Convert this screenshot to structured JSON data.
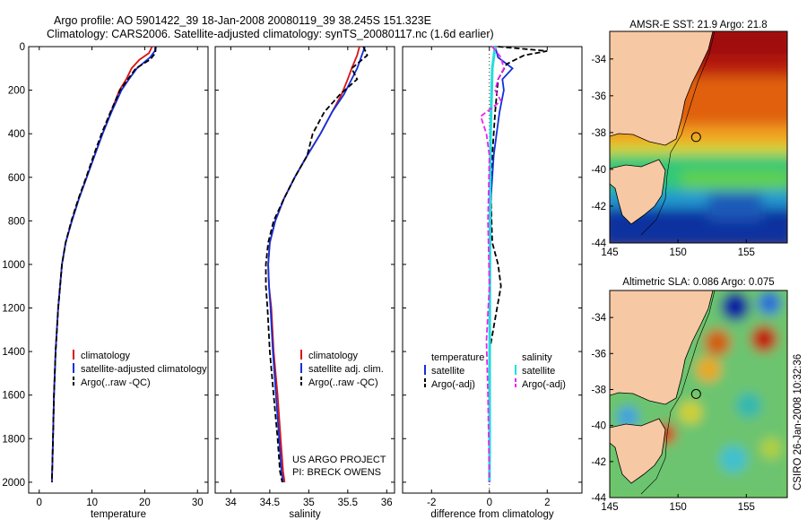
{
  "header": {
    "line1": "Argo profile: AO 5901422_39 18-Jan-2008 20080119_39 38.245S 151.323E",
    "line2": "Climatology: CARS2006. Satellite-adjusted climatology: synTS_20080117.nc (1.6d earlier)"
  },
  "side_label": "CSIRO 26-Jan-2008 10:32:36",
  "project_note": {
    "line1": "US ARGO PROJECT",
    "line2": "PI: BRECK OWENS"
  },
  "colors": {
    "climatology": "#dd1111",
    "satellite": "#1030dd",
    "argo": "#000000",
    "salinity_satellite": "#22dddd",
    "salinity_argo": "#ee22ee",
    "land": "#f6c8a4"
  },
  "chart_data": [
    {
      "type": "line",
      "id": "temperature",
      "xlabel": "temperature",
      "ylabel": "",
      "xlim": [
        -2,
        32
      ],
      "ylim": [
        2050,
        0
      ],
      "xticks": [
        0,
        10,
        20,
        30
      ],
      "yticks": [
        0,
        200,
        400,
        600,
        800,
        1000,
        1200,
        1400,
        1600,
        1800,
        2000
      ],
      "legend": [
        "climatology",
        "satellite-adjusted climatology",
        "Argo(..raw -QC)"
      ],
      "legend_position": "lower-right",
      "series": [
        {
          "name": "climatology",
          "color": "#dd1111",
          "dash": false,
          "x": [
            21.4,
            20.8,
            19.0,
            17.5,
            16.5,
            15.2,
            13.6,
            12.0,
            10.5,
            9.0,
            7.5,
            6.2,
            5.0,
            4.3,
            3.6,
            3.1,
            2.8,
            2.6,
            2.4
          ],
          "y": [
            0,
            30,
            60,
            100,
            150,
            200,
            300,
            400,
            500,
            600,
            700,
            800,
            900,
            1000,
            1200,
            1400,
            1600,
            1800,
            2000
          ]
        },
        {
          "name": "satellite-adjusted climatology",
          "color": "#1030dd",
          "dash": false,
          "x": [
            22.0,
            21.9,
            21.0,
            18.5,
            17.0,
            15.6,
            13.7,
            12.0,
            10.5,
            9.0,
            7.5,
            6.2,
            5.0,
            4.3,
            3.6,
            3.1,
            2.8,
            2.6,
            2.4
          ],
          "y": [
            0,
            20,
            50,
            100,
            150,
            200,
            300,
            400,
            500,
            600,
            700,
            800,
            900,
            1000,
            1200,
            1400,
            1600,
            1800,
            2000
          ]
        },
        {
          "name": "Argo(..raw -QC)",
          "color": "#000000",
          "dash": true,
          "x": [
            22.1,
            22.0,
            21.0,
            18.3,
            16.8,
            15.3,
            13.5,
            11.8,
            10.3,
            8.9,
            7.4,
            6.1,
            5.0,
            4.3,
            3.6,
            3.1,
            2.8,
            2.6,
            2.4
          ],
          "y": [
            0,
            30,
            60,
            100,
            150,
            200,
            300,
            400,
            500,
            600,
            700,
            800,
            900,
            1000,
            1200,
            1400,
            1600,
            1800,
            2000
          ]
        }
      ]
    },
    {
      "type": "line",
      "id": "salinity",
      "xlabel": "salinity",
      "ylabel": "",
      "xlim": [
        33.8,
        36.1
      ],
      "ylim": [
        2050,
        0
      ],
      "xticks": [
        34,
        34.5,
        35,
        35.5,
        36
      ],
      "xtick_labels": [
        "34",
        "34.5",
        "35",
        "35.5",
        "36"
      ],
      "yticks": [
        0,
        200,
        400,
        600,
        800,
        1000,
        1200,
        1400,
        1600,
        1800,
        2000
      ],
      "legend": [
        "climatology",
        "satellite adj. clim.",
        "Argo(..raw -QC)"
      ],
      "legend_position": "lower-right",
      "series": [
        {
          "name": "climatology",
          "color": "#dd1111",
          "dash": false,
          "x": [
            35.65,
            35.62,
            35.55,
            35.5,
            35.42,
            35.3,
            35.15,
            34.98,
            34.82,
            34.68,
            34.57,
            34.5,
            34.48,
            34.49,
            34.52,
            34.55,
            34.6,
            34.64,
            34.67,
            34.69
          ],
          "y": [
            0,
            40,
            100,
            150,
            220,
            300,
            400,
            500,
            600,
            700,
            800,
            900,
            1000,
            1100,
            1200,
            1400,
            1600,
            1800,
            1950,
            2000
          ]
        },
        {
          "name": "satellite adj. clim.",
          "color": "#1030dd",
          "dash": false,
          "x": [
            35.72,
            35.68,
            35.62,
            35.55,
            35.45,
            35.3,
            35.15,
            34.98,
            34.82,
            34.68,
            34.57,
            34.5,
            34.48,
            34.49,
            34.51,
            34.54,
            34.58,
            34.62,
            34.65,
            34.67
          ],
          "y": [
            0,
            40,
            100,
            150,
            220,
            300,
            400,
            500,
            600,
            700,
            800,
            900,
            1000,
            1100,
            1200,
            1400,
            1600,
            1800,
            1950,
            2000
          ]
        },
        {
          "name": "Argo(..raw -QC)",
          "color": "#000000",
          "dash": true,
          "x": [
            35.7,
            35.75,
            35.55,
            35.62,
            35.4,
            35.2,
            35.05,
            34.98,
            34.82,
            34.68,
            34.55,
            34.48,
            34.45,
            34.45,
            34.47,
            34.5,
            34.55,
            34.6,
            34.63,
            34.66
          ],
          "y": [
            0,
            40,
            100,
            150,
            220,
            300,
            400,
            500,
            600,
            700,
            800,
            900,
            1000,
            1100,
            1200,
            1400,
            1600,
            1800,
            1950,
            2000
          ]
        }
      ]
    },
    {
      "type": "line",
      "id": "difference",
      "xlabel": "difference from climatology",
      "ylabel": "",
      "xlim": [
        -3,
        3.2
      ],
      "ylim": [
        2050,
        0
      ],
      "xticks": [
        -2,
        0,
        2
      ],
      "yticks": [
        0,
        200,
        400,
        600,
        800,
        1000,
        1200,
        1400,
        1600,
        1800,
        2000
      ],
      "legend": [
        "temperature",
        "satellite",
        "Argo(-adj)",
        "salinity",
        "satellite",
        "Argo(-adj)"
      ],
      "legend_position": "lower-center",
      "series": [
        {
          "name": "temperature satellite",
          "color": "#1030dd",
          "dash": false,
          "x": [
            0.2,
            0.3,
            0.8,
            0.45,
            0.5,
            0.35,
            0.25,
            0.15,
            0.1,
            0.05,
            0.05,
            0.02,
            0.02,
            0.0,
            0.0,
            0.0,
            0.0
          ],
          "y": [
            0,
            50,
            100,
            150,
            200,
            300,
            400,
            500,
            600,
            700,
            800,
            1000,
            1200,
            1400,
            1600,
            1800,
            2000
          ]
        },
        {
          "name": "temperature Argo(-adj)",
          "color": "#000000",
          "dash": true,
          "x": [
            0.3,
            2.0,
            1.2,
            0.6,
            0.3,
            0.2,
            0.15,
            0.1,
            0.05,
            0.05,
            0.1,
            0.3,
            0.4,
            0.2,
            0.0,
            0.0,
            0.0
          ],
          "y": [
            0,
            20,
            40,
            80,
            150,
            300,
            400,
            500,
            600,
            700,
            900,
            1000,
            1100,
            1250,
            1400,
            1700,
            2000
          ]
        },
        {
          "name": "salinity satellite",
          "color": "#22dddd",
          "dash": false,
          "x": [
            0.2,
            0.15,
            0.1,
            0.08,
            0.06,
            0.04,
            0.03,
            0.02,
            0.02,
            0.01,
            0.01,
            0.0
          ],
          "y": [
            0,
            50,
            100,
            200,
            300,
            400,
            600,
            800,
            1000,
            1400,
            1800,
            2000
          ]
        },
        {
          "name": "salinity Argo(-adj)",
          "color": "#ee22ee",
          "dash": true,
          "x": [
            0.1,
            0.4,
            0.5,
            0.3,
            0.2,
            0.4,
            0.1,
            -0.3,
            -0.1,
            0.0,
            -0.05,
            0.0,
            -0.1,
            -0.05,
            0.0
          ],
          "y": [
            0,
            50,
            100,
            150,
            200,
            250,
            280,
            320,
            400,
            500,
            800,
            1100,
            1350,
            1600,
            2000
          ]
        }
      ]
    },
    {
      "type": "heatmap",
      "id": "sst_map",
      "title": "AMSR-E SST: 21.9 Argo: 21.8",
      "xlim": [
        145,
        158
      ],
      "ylim": [
        -44,
        -32.5
      ],
      "xticks": [
        145,
        150,
        155
      ],
      "yticks": [
        -34,
        -36,
        -38,
        -40,
        -42,
        -44
      ],
      "argo_marker": {
        "lon": 151.323,
        "lat": -38.245
      }
    },
    {
      "type": "heatmap",
      "id": "sla_map",
      "title": "Altimetric SLA: 0.086 Argo: 0.075",
      "xlim": [
        145,
        158
      ],
      "ylim": [
        -44,
        -32.5
      ],
      "xticks": [
        145,
        150,
        155
      ],
      "yticks": [
        -34,
        -36,
        -38,
        -40,
        -42,
        -44
      ],
      "argo_marker": {
        "lon": 151.323,
        "lat": -38.245
      }
    }
  ]
}
